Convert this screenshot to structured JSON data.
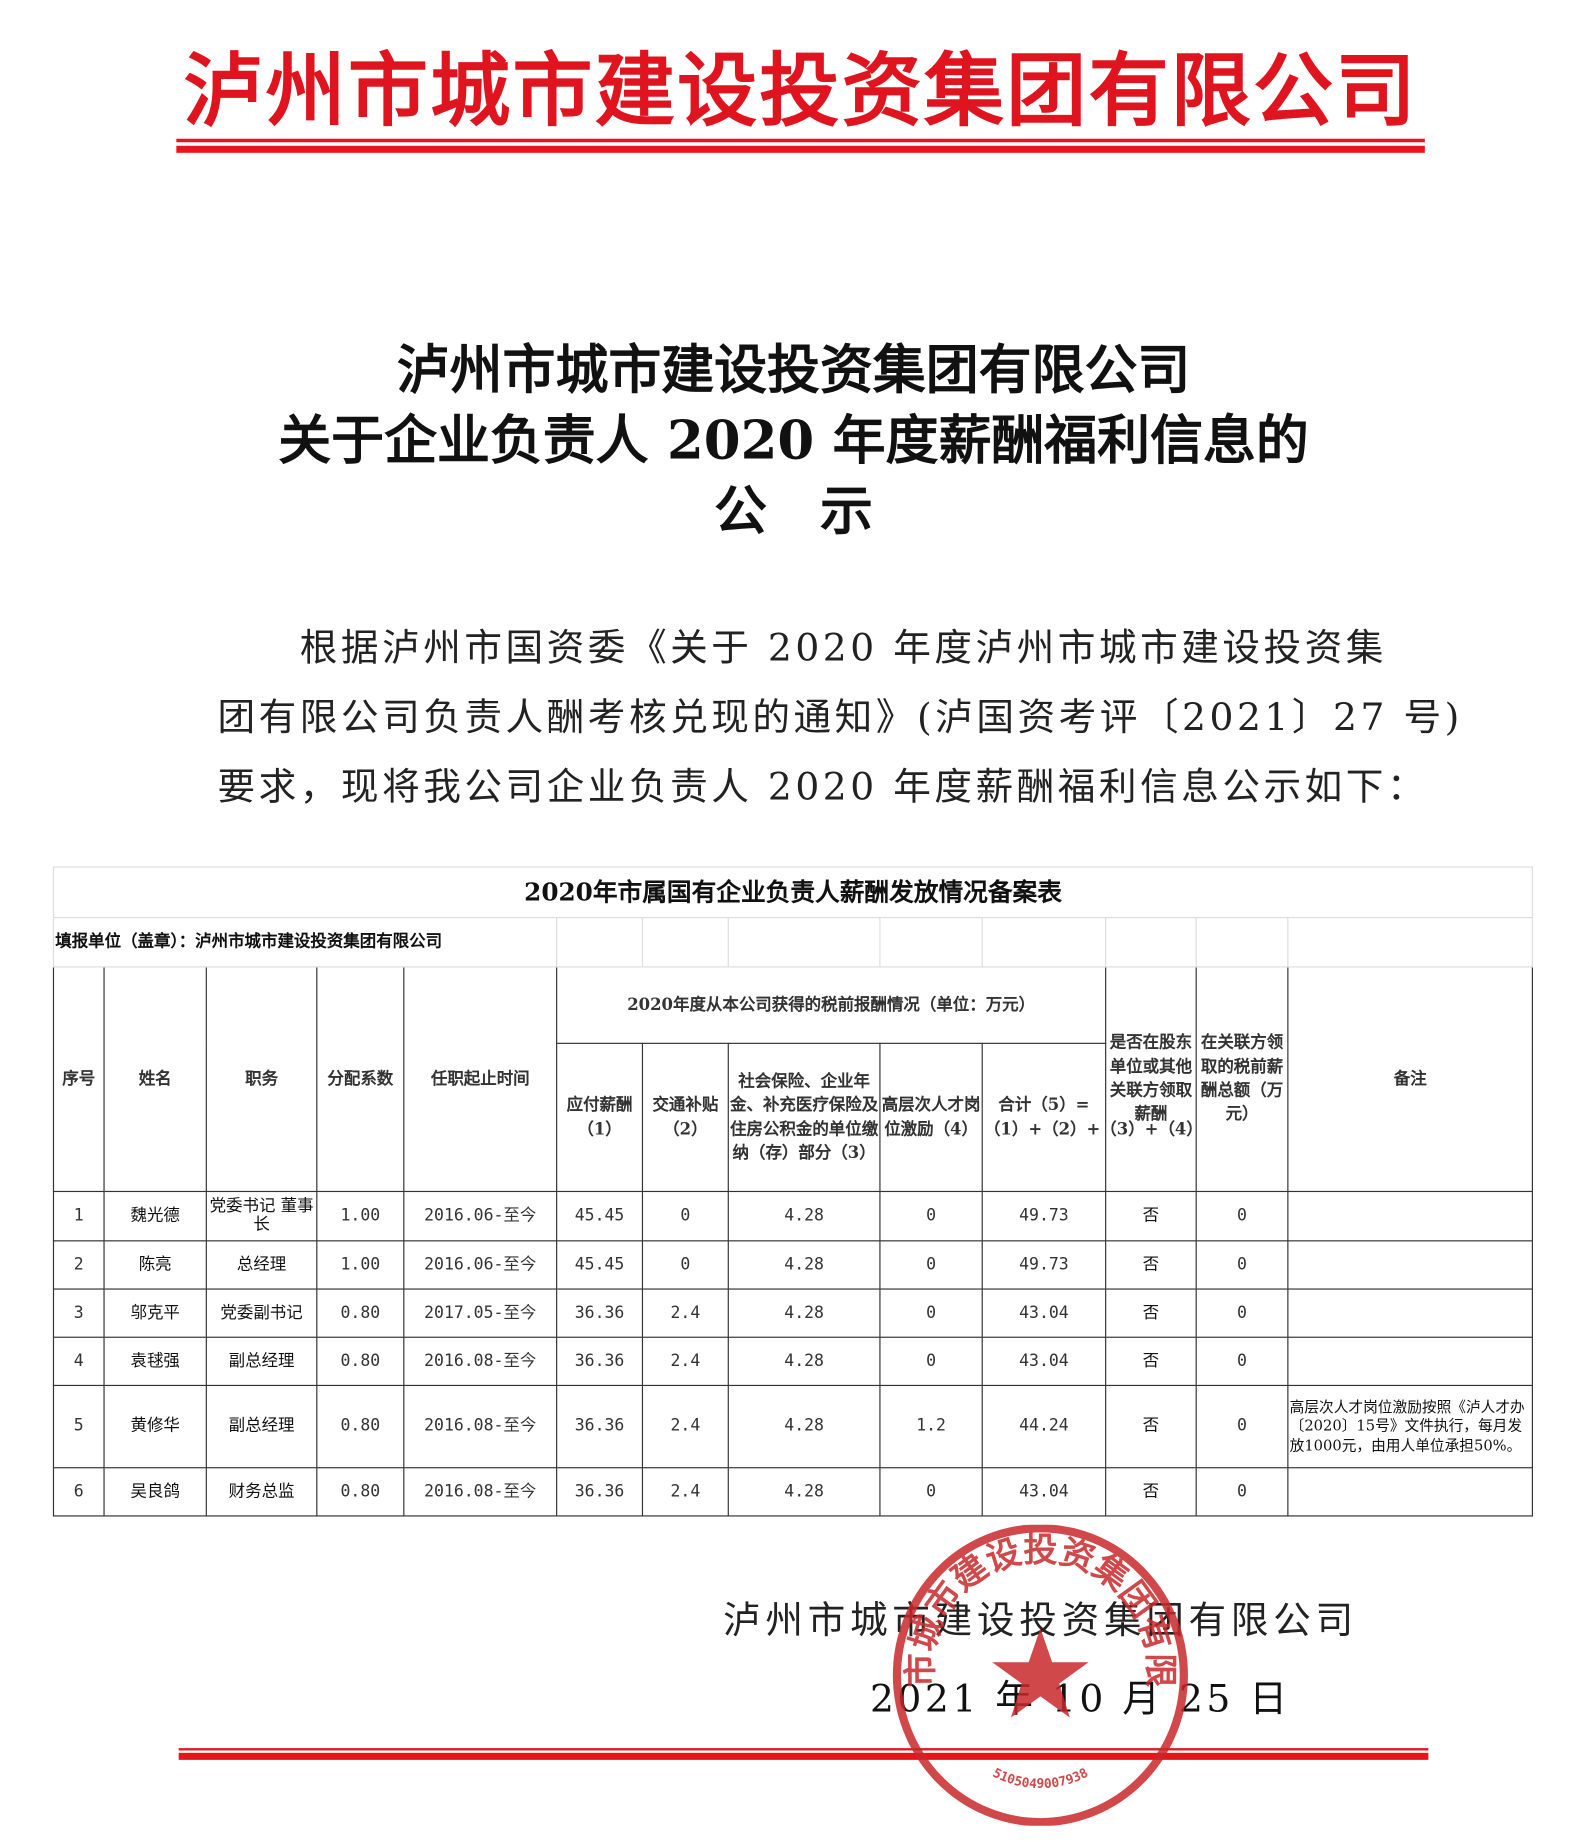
{
  "letterhead": {
    "company": "泸州市城市建设投资集团有限公司",
    "color": "#e0141e"
  },
  "title": {
    "line1": "泸州市城市建设投资集团有限公司",
    "line2": "关于企业负责人 2020 年度薪酬福利信息的",
    "line3": "公　示"
  },
  "body": {
    "line1": "　　根据泸州市国资委《关于 2020 年度泸州市城市建设投资集",
    "line2": "团有限公司负责人酬考核兑现的通知》(泸国资考评〔2021〕27 号)",
    "line3": "要求，现将我公司企业负责人 2020 年度薪酬福利信息公示如下："
  },
  "table": {
    "title": "2020年市属国有企业负责人薪酬发放情况备案表",
    "filler": "填报单位（盖章）：泸州市城市建设投资集团有限公司",
    "headers": {
      "no": "序号",
      "name": "姓名",
      "position": "职务",
      "coef": "分配系数",
      "tenure": "任职起止时间",
      "group": "2020年度从本公司获得的税前报酬情况（单位：万元）",
      "c1": "应付薪酬（1）",
      "c2": "交通补贴（2）",
      "c3": "社会保险、企业年金、补充医疗保险及住房公积金的单位缴纳（存）部分（3）",
      "c4": "高层次人才岗位激励（4）",
      "c5": "合计（5）=（1）+（2）+（3）+（4）",
      "other": "是否在股东单位或其他关联方领取薪酬",
      "related": "在关联方领取的税前薪酬总额（万元）",
      "remark": "备注"
    },
    "rows": [
      {
        "no": "1",
        "name": "魏光德",
        "position": "党委书记 董事长",
        "coef": "1.00",
        "tenure": "2016.06-至今",
        "c1": "45.45",
        "c2": "0",
        "c3": "4.28",
        "c4": "0",
        "c5": "49.73",
        "other": "否",
        "related": "0",
        "remark": ""
      },
      {
        "no": "2",
        "name": "陈亮",
        "position": "总经理",
        "coef": "1.00",
        "tenure": "2016.06-至今",
        "c1": "45.45",
        "c2": "0",
        "c3": "4.28",
        "c4": "0",
        "c5": "49.73",
        "other": "否",
        "related": "0",
        "remark": ""
      },
      {
        "no": "3",
        "name": "邬克平",
        "position": "党委副书记",
        "coef": "0.80",
        "tenure": "2017.05-至今",
        "c1": "36.36",
        "c2": "2.4",
        "c3": "4.28",
        "c4": "0",
        "c5": "43.04",
        "other": "否",
        "related": "0",
        "remark": ""
      },
      {
        "no": "4",
        "name": "袁毬强",
        "position": "副总经理",
        "coef": "0.80",
        "tenure": "2016.08-至今",
        "c1": "36.36",
        "c2": "2.4",
        "c3": "4.28",
        "c4": "0",
        "c5": "43.04",
        "other": "否",
        "related": "0",
        "remark": ""
      },
      {
        "no": "5",
        "name": "黄修华",
        "position": "副总经理",
        "coef": "0.80",
        "tenure": "2016.08-至今",
        "c1": "36.36",
        "c2": "2.4",
        "c3": "4.28",
        "c4": "1.2",
        "c5": "44.24",
        "other": "否",
        "related": "0",
        "remark": "高层次人才岗位激励按照《泸人才办〔2020〕15号》文件执行，每月发放1000元，由用人单位承担50%。"
      },
      {
        "no": "6",
        "name": "吴良鸽",
        "position": "财务总监",
        "coef": "0.80",
        "tenure": "2016.08-至今",
        "c1": "36.36",
        "c2": "2.4",
        "c3": "4.28",
        "c4": "0",
        "c5": "43.04",
        "other": "否",
        "related": "0",
        "remark": ""
      }
    ]
  },
  "signature": {
    "company": "泸州市城市建设投资集团有限公司",
    "date": "2021 年 10 月 25 日"
  },
  "stamp": {
    "text": "泸州市城市建设投资集团有限公司",
    "number": "5105049007938",
    "color": "#c8282a"
  }
}
